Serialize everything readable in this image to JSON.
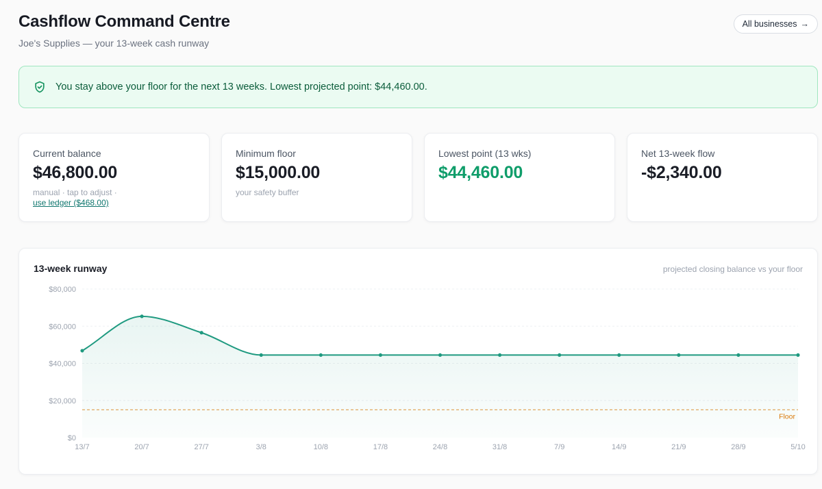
{
  "header": {
    "title": "Cashflow Command Centre",
    "subtitle": "Joe's Supplies — your 13-week cash runway",
    "all_businesses_label": "All businesses",
    "all_businesses_arrow": "→"
  },
  "banner": {
    "icon": "shield-check-icon",
    "text": "You stay above your floor for the next 13 weeks. Lowest projected point: $44,460.00."
  },
  "cards": {
    "current_balance": {
      "label": "Current balance",
      "value": "$46,800.00",
      "note": "manual · tap to adjust ·",
      "link": "use ledger ($468.00)"
    },
    "minimum_floor": {
      "label": "Minimum floor",
      "value": "$15,000.00",
      "note": "your safety buffer"
    },
    "lowest_point": {
      "label": "Lowest point (13 wks)",
      "value": "$44,460.00"
    },
    "net_flow": {
      "label": "Net 13-week flow",
      "value": "-$2,340.00"
    }
  },
  "chart_panel": {
    "title": "13-week runway",
    "note": "projected closing balance vs your floor"
  },
  "colors": {
    "accent": "#1f9a80",
    "positive": "#0f9d6a",
    "floor": "#e0a04f",
    "banner_bg": "#ebfbf2",
    "banner_border": "#9fe6bf"
  },
  "chart_data": {
    "type": "area",
    "title": "13-week runway",
    "categories": [
      "13/7",
      "20/7",
      "27/7",
      "3/8",
      "10/8",
      "17/8",
      "24/8",
      "31/8",
      "7/9",
      "14/9",
      "21/9",
      "28/9",
      "5/10"
    ],
    "series": [
      {
        "values": [
          46800,
          65300,
          56500,
          44460,
          44460,
          44460,
          44460,
          44460,
          44460,
          44460,
          44460,
          44460,
          44460
        ]
      }
    ],
    "floor": {
      "label": "Floor",
      "value": 15000
    },
    "ylim": [
      0,
      80000
    ],
    "yticks": [
      {
        "value": 0,
        "label": "$0"
      },
      {
        "value": 20000,
        "label": "$20,000"
      },
      {
        "value": 40000,
        "label": "$40,000"
      },
      {
        "value": 60000,
        "label": "$60,000"
      },
      {
        "value": 80000,
        "label": "$80,000"
      }
    ],
    "grid": true,
    "legend": "none"
  }
}
